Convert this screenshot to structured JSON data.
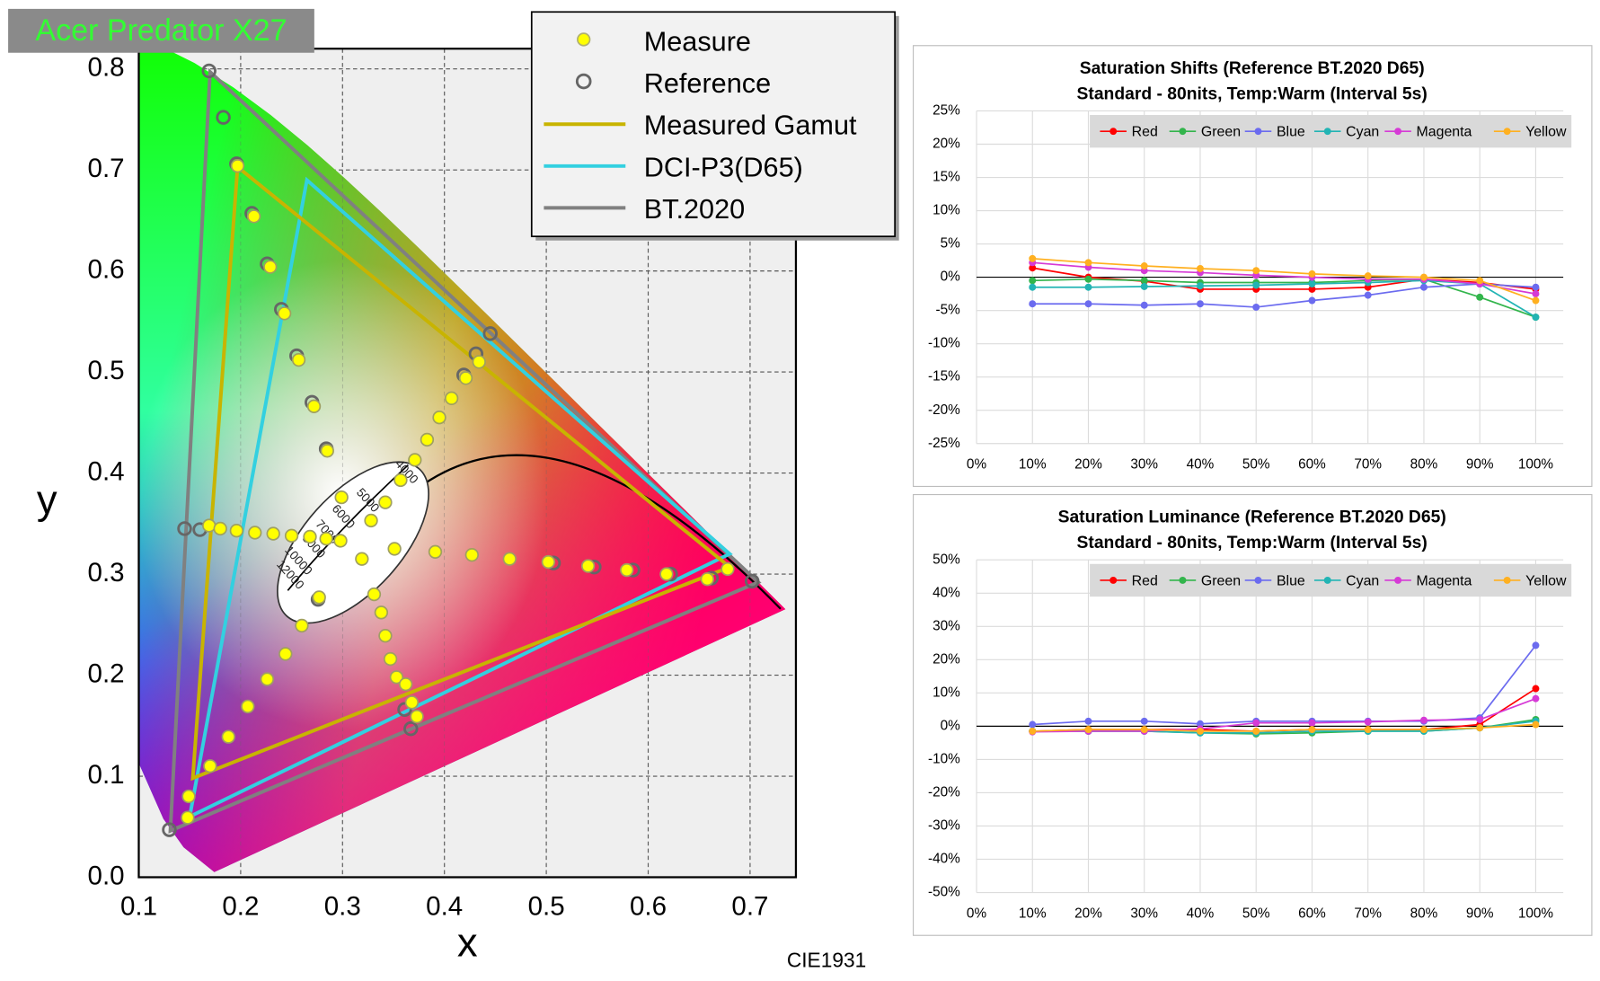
{
  "chart_data": [
    {
      "type": "scatter",
      "title": "Acer Predator X27",
      "x_label": "x",
      "y_label": "y",
      "caption": "CIE1931",
      "xlim": [
        0.1,
        0.745
      ],
      "ylim": [
        0,
        0.82
      ],
      "xticks": [
        0.1,
        0.2,
        0.3,
        0.4,
        0.5,
        0.6,
        0.7
      ],
      "yticks": [
        {
          "value": 0,
          "label": "0.0"
        },
        0.1,
        0.2,
        0.3,
        0.4,
        0.5,
        0.6,
        0.7,
        0.8
      ],
      "grid": true,
      "cct_labels": [
        "4000",
        "5000",
        "6000",
        "7000",
        "8000",
        "10000",
        "12000"
      ],
      "series": [
        {
          "name": "Measure",
          "color": "#ffff00",
          "x": [
            0.197,
            0.213,
            0.229,
            0.243,
            0.257,
            0.272,
            0.285,
            0.299,
            0.434,
            0.421,
            0.407,
            0.395,
            0.383,
            0.371,
            0.357,
            0.342,
            0.328,
            0.678,
            0.658,
            0.618,
            0.579,
            0.541,
            0.502,
            0.464,
            0.427,
            0.391,
            0.351,
            0.319,
            0.331,
            0.338,
            0.342,
            0.347,
            0.353,
            0.362,
            0.368,
            0.373,
            0.148,
            0.149,
            0.17,
            0.188,
            0.207,
            0.226,
            0.244,
            0.26,
            0.277,
            0.169,
            0.18,
            0.196,
            0.214,
            0.232,
            0.25,
            0.268,
            0.284,
            0.298
          ],
          "y": [
            0.704,
            0.654,
            0.604,
            0.558,
            0.512,
            0.466,
            0.422,
            0.376,
            0.51,
            0.494,
            0.474,
            0.455,
            0.433,
            0.413,
            0.393,
            0.371,
            0.353,
            0.305,
            0.295,
            0.3,
            0.304,
            0.308,
            0.312,
            0.315,
            0.319,
            0.322,
            0.325,
            0.315,
            0.28,
            0.262,
            0.239,
            0.216,
            0.198,
            0.191,
            0.173,
            0.159,
            0.059,
            0.08,
            0.11,
            0.139,
            0.169,
            0.196,
            0.221,
            0.249,
            0.277,
            0.348,
            0.345,
            0.343,
            0.341,
            0.34,
            0.338,
            0.337,
            0.335,
            0.333
          ]
        },
        {
          "name": "Reference",
          "color": "#666666",
          "x": [
            0.169,
            0.183,
            0.196,
            0.211,
            0.226,
            0.24,
            0.255,
            0.27,
            0.284,
            0.702,
            0.662,
            0.622,
            0.585,
            0.547,
            0.507,
            0.445,
            0.431,
            0.419,
            0.367,
            0.361,
            0.13,
            0.145,
            0.16,
            0.276
          ],
          "y": [
            0.798,
            0.752,
            0.706,
            0.657,
            0.607,
            0.562,
            0.516,
            0.47,
            0.424,
            0.293,
            0.296,
            0.3,
            0.304,
            0.307,
            0.311,
            0.538,
            0.518,
            0.497,
            0.147,
            0.166,
            0.047,
            0.345,
            0.344,
            0.275
          ]
        }
      ],
      "gamuts": [
        {
          "name": "Measured Gamut",
          "color": "#c8b400",
          "x": [
            0.68,
            0.197,
            0.153
          ],
          "y": [
            0.307,
            0.703,
            0.098
          ]
        },
        {
          "name": "DCI-P3(D65)",
          "color": "#33d0e0",
          "x": [
            0.68,
            0.265,
            0.15
          ],
          "y": [
            0.32,
            0.69,
            0.06
          ]
        },
        {
          "name": "BT.2020",
          "color": "#808080",
          "x": [
            0.708,
            0.17,
            0.131
          ],
          "y": [
            0.292,
            0.797,
            0.046
          ]
        }
      ]
    },
    {
      "type": "line",
      "title": "Saturation Shifts (Reference BT.2020 D65)",
      "subtitle": "Standard - 80nits, Temp:Warm (Interval 5s)",
      "categories": [
        "0%",
        "10%",
        "20%",
        "30%",
        "40%",
        "50%",
        "60%",
        "70%",
        "80%",
        "90%",
        "100%"
      ],
      "ylim": [
        -25,
        25
      ],
      "yticks": [
        {
          "value": -25,
          "label": "-25%"
        },
        {
          "value": -20,
          "label": "-20%"
        },
        {
          "value": -15,
          "label": "-15%"
        },
        {
          "value": -10,
          "label": "-10%"
        },
        {
          "value": -5,
          "label": "-5%"
        },
        {
          "value": 0,
          "label": "0%"
        },
        {
          "value": 5,
          "label": "5%"
        },
        {
          "value": 10,
          "label": "10%"
        },
        {
          "value": 15,
          "label": "15%"
        },
        {
          "value": 20,
          "label": "20%"
        },
        {
          "value": 25,
          "label": "25%"
        }
      ],
      "grid": true,
      "series": [
        {
          "name": "Red",
          "color": "#ff0000",
          "values": [
            null,
            1.4,
            0,
            -0.6,
            -1.8,
            -1.8,
            -1.8,
            -1.5,
            -0.3,
            -0.8,
            -1.8
          ]
        },
        {
          "name": "Green",
          "color": "#33b54c",
          "values": [
            null,
            -0.5,
            -0.3,
            -0.5,
            -0.8,
            -0.8,
            -0.8,
            -0.5,
            -0.3,
            -3.0,
            -6.0
          ]
        },
        {
          "name": "Blue",
          "color": "#6b6bef",
          "values": [
            null,
            -4.0,
            -4.0,
            -4.2,
            -4.0,
            -4.5,
            -3.5,
            -2.7,
            -1.5,
            -1.0,
            -1.5
          ]
        },
        {
          "name": "Cyan",
          "color": "#22b4b4",
          "values": [
            null,
            -1.5,
            -1.5,
            -1.4,
            -1.3,
            -1.2,
            -1.0,
            -0.8,
            -0.5,
            -1.0,
            -6.0
          ]
        },
        {
          "name": "Magenta",
          "color": "#d63ad6",
          "values": [
            null,
            2.2,
            1.5,
            1.0,
            0.7,
            0.3,
            0,
            -0.3,
            -0.3,
            -1.0,
            -2.5
          ]
        },
        {
          "name": "Yellow",
          "color": "#ffb020",
          "values": [
            null,
            2.8,
            2.2,
            1.7,
            1.3,
            1.0,
            0.5,
            0.2,
            0.0,
            -0.5,
            -3.5
          ]
        }
      ]
    },
    {
      "type": "line",
      "title": "Saturation Luminance (Reference BT.2020 D65)",
      "subtitle": "Standard - 80nits, Temp:Warm (Interval 5s)",
      "categories": [
        "0%",
        "10%",
        "20%",
        "30%",
        "40%",
        "50%",
        "60%",
        "70%",
        "80%",
        "90%",
        "100%"
      ],
      "ylim": [
        -50,
        50
      ],
      "yticks": [
        {
          "value": -50,
          "label": "-50%"
        },
        {
          "value": -40,
          "label": "-40%"
        },
        {
          "value": -30,
          "label": "-30%"
        },
        {
          "value": -20,
          "label": "-20%"
        },
        {
          "value": -10,
          "label": "-10%"
        },
        {
          "value": 0,
          "label": "0%"
        },
        {
          "value": 10,
          "label": "10%"
        },
        {
          "value": 20,
          "label": "20%"
        },
        {
          "value": 30,
          "label": "30%"
        },
        {
          "value": 40,
          "label": "40%"
        },
        {
          "value": 50,
          "label": "50%"
        }
      ],
      "grid": true,
      "series": [
        {
          "name": "Red",
          "color": "#ff0000",
          "values": [
            null,
            -1.5,
            -1,
            -1,
            -1,
            -1.5,
            -1,
            -1,
            -1,
            0.5,
            11.3
          ]
        },
        {
          "name": "Green",
          "color": "#33b54c",
          "values": [
            null,
            -1.5,
            -1.5,
            -1.5,
            -2,
            -2.3,
            -2,
            -1.5,
            -1.5,
            -0.5,
            2
          ]
        },
        {
          "name": "Blue",
          "color": "#6b6bef",
          "values": [
            null,
            0.5,
            1.5,
            1.5,
            0.7,
            1.5,
            1.5,
            1.5,
            1.5,
            2.5,
            24.3
          ]
        },
        {
          "name": "Cyan",
          "color": "#22b4b4",
          "values": [
            null,
            -1.5,
            -1.5,
            -1.5,
            -2,
            -2,
            -1.5,
            -1.5,
            -1.5,
            -0.5,
            1.5
          ]
        },
        {
          "name": "Magenta",
          "color": "#d63ad6",
          "values": [
            null,
            -1.7,
            -1.5,
            -1.5,
            -0.8,
            1,
            1,
            1.3,
            1.8,
            2,
            8.3
          ]
        },
        {
          "name": "Yellow",
          "color": "#ffb020",
          "values": [
            null,
            -1.5,
            -1,
            -1,
            -1.5,
            -1.5,
            -1,
            -1,
            -1,
            -0.5,
            0.5
          ]
        }
      ]
    }
  ]
}
